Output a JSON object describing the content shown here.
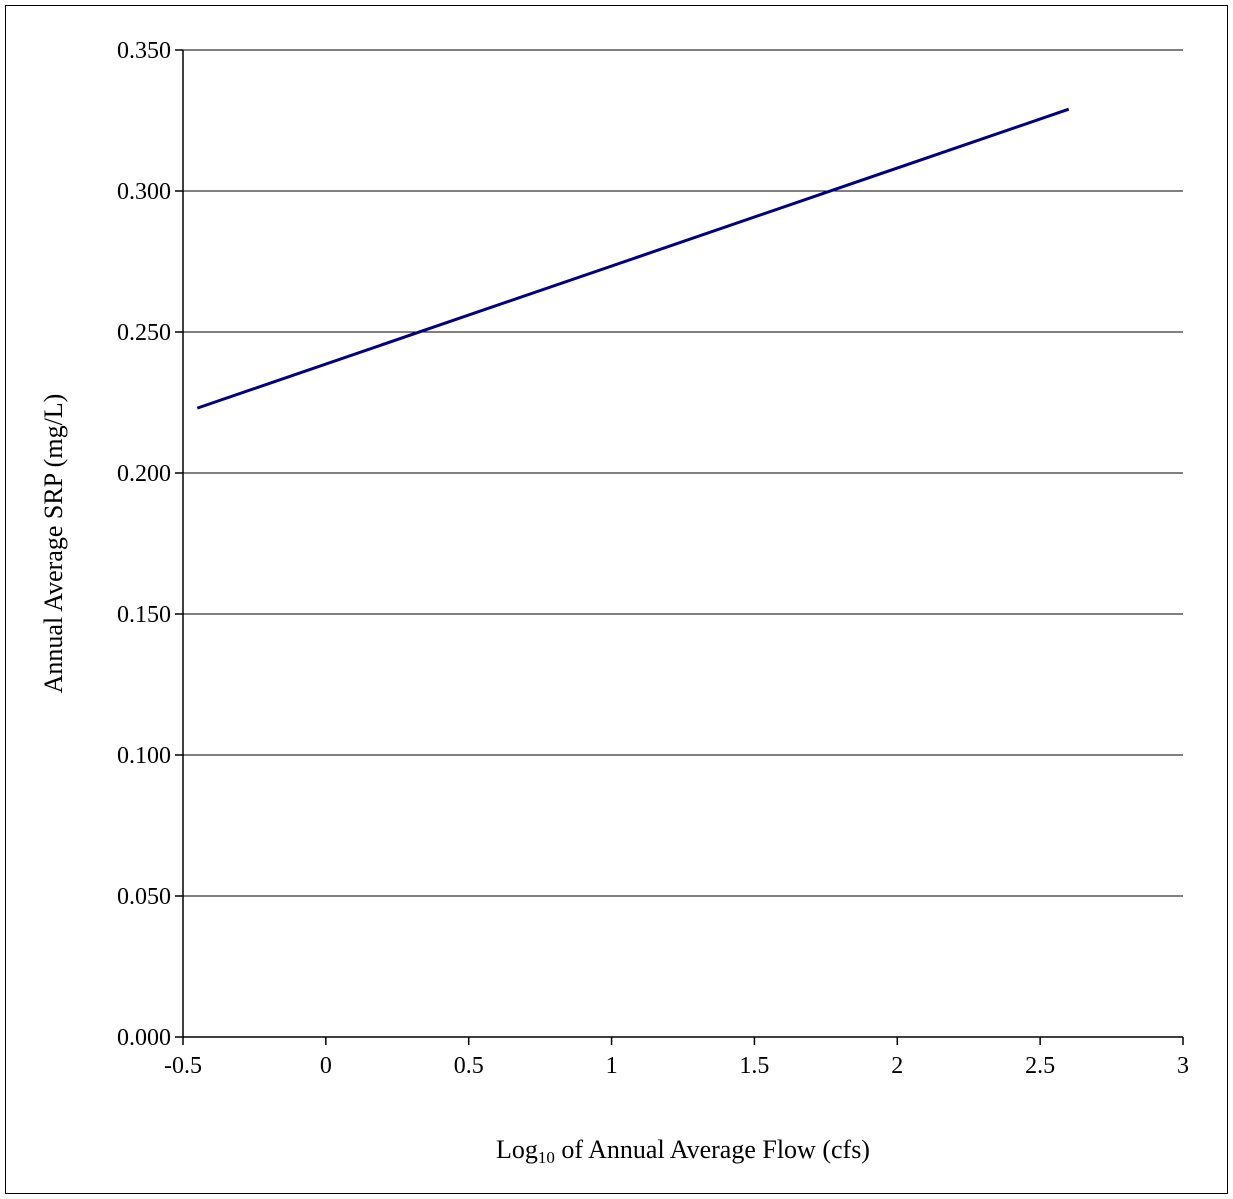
{
  "chart_data": {
    "type": "line",
    "xlabel": {
      "prefix": "Log",
      "subscript": "10",
      "suffix": " of Annual Average Flow (cfs)"
    },
    "ylabel": "Annual Average SRP (mg/L)",
    "xlim": [
      -0.5,
      3
    ],
    "ylim": [
      0,
      0.35
    ],
    "xticks": [
      -0.5,
      0,
      0.5,
      1,
      1.5,
      2,
      2.5,
      3
    ],
    "xtick_labels": [
      "-0.5",
      "0",
      "0.5",
      "1",
      "1.5",
      "2",
      "2.5",
      "3"
    ],
    "yticks": [
      0,
      0.05,
      0.1,
      0.15,
      0.2,
      0.25,
      0.3,
      0.35
    ],
    "ytick_labels": [
      "0.000",
      "0.050",
      "0.100",
      "0.150",
      "0.200",
      "0.250",
      "0.300",
      "0.350"
    ],
    "grid": "horizontal",
    "series": [
      {
        "color": "#000080",
        "x": [
          -0.45,
          2.6
        ],
        "y": [
          0.223,
          0.329
        ]
      }
    ]
  }
}
